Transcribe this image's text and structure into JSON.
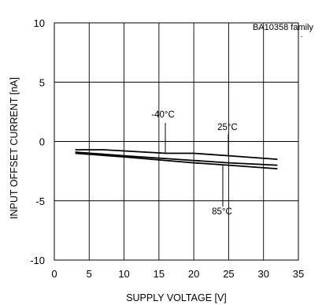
{
  "chart_data": {
    "type": "line",
    "title": "BA10358 family",
    "xlabel": "SUPPLY VOLTAGE [V]",
    "ylabel": "INPUT OFFSET CURRENT [nA]",
    "xlim": [
      0,
      35
    ],
    "ylim": [
      -10,
      10
    ],
    "xticks": [
      0,
      5,
      10,
      15,
      20,
      25,
      30,
      35
    ],
    "yticks": [
      10,
      5,
      0,
      -5,
      -10
    ],
    "grid": true,
    "series": [
      {
        "name": "-40°C",
        "x": [
          3,
          7,
          16,
          20,
          25,
          32
        ],
        "y": [
          -0.7,
          -0.7,
          -1.0,
          -1.0,
          -1.2,
          -1.5
        ]
      },
      {
        "name": "25°C",
        "x": [
          3,
          10,
          20,
          25,
          32
        ],
        "y": [
          -0.9,
          -1.2,
          -1.6,
          -1.8,
          -2.0
        ]
      },
      {
        "name": "85°C",
        "x": [
          3,
          10,
          20,
          25,
          32
        ],
        "y": [
          -1.0,
          -1.3,
          -1.8,
          -2.0,
          -2.3
        ]
      }
    ],
    "annotations": [
      {
        "text": "-40°C",
        "target_x": 16,
        "target_y": -1.0
      },
      {
        "text": "25°C",
        "target_x": 25,
        "target_y": -1.2
      },
      {
        "text": "85°C",
        "target_x": 24,
        "target_y": -2.0
      }
    ]
  }
}
